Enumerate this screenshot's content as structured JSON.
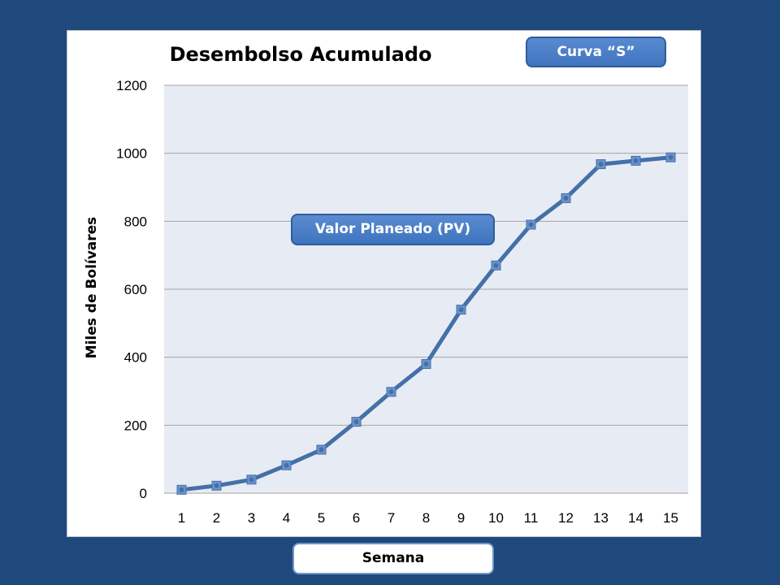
{
  "slide": {
    "curve_badge": "Curva “S”",
    "series_callout": "Valor Planeado (PV)",
    "x_axis_box": "Semana"
  },
  "chart_data": {
    "type": "line",
    "title": "Desembolso Acumulado",
    "ylabel": "Miles de Bolívares",
    "xlabel": "Semana",
    "x": [
      1,
      2,
      3,
      4,
      5,
      6,
      7,
      8,
      9,
      10,
      11,
      12,
      13,
      14,
      15
    ],
    "categories": [
      "1",
      "2",
      "3",
      "4",
      "5",
      "6",
      "7",
      "8",
      "9",
      "10",
      "11",
      "12",
      "13",
      "14",
      "15"
    ],
    "series": [
      {
        "name": "Valor Planeado (PV)",
        "values": [
          10,
          22,
          40,
          82,
          128,
          210,
          298,
          380,
          540,
          670,
          790,
          868,
          968,
          978,
          988
        ]
      }
    ],
    "ylim": [
      0,
      1200
    ],
    "yticks": [
      0,
      200,
      400,
      600,
      800,
      1000,
      1200
    ],
    "grid": true,
    "legend": "none"
  },
  "colors": {
    "background": "#1f497d",
    "plot_area": "#e7ebf4",
    "line": "#4470a8",
    "marker": "#6b93cc",
    "gridline": "#a6a6a6"
  }
}
